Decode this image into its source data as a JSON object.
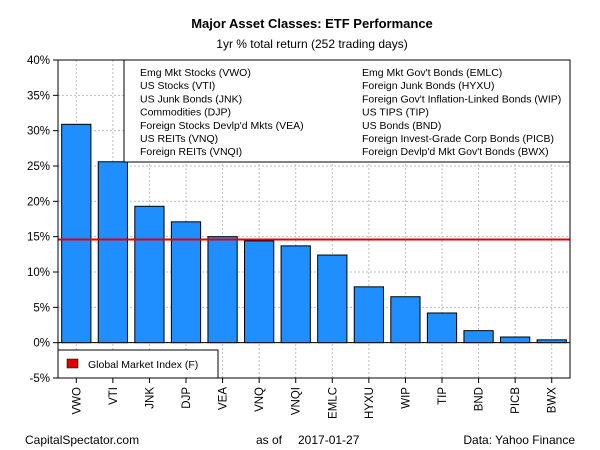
{
  "chart_data": {
    "type": "bar",
    "title": "Major Asset Classes: ETF Performance",
    "subtitle": "1yr % total return (252 trading days)",
    "categories": [
      "VWO",
      "VTI",
      "JNK",
      "DJP",
      "VEA",
      "VNQ",
      "VNQI",
      "EMLC",
      "HYXU",
      "WIP",
      "TIP",
      "BND",
      "PICB",
      "BWX"
    ],
    "values": [
      30.9,
      25.6,
      19.3,
      17.1,
      15.0,
      14.4,
      13.7,
      12.4,
      7.9,
      6.5,
      4.2,
      1.7,
      0.8,
      0.4
    ],
    "ylim": [
      -5,
      40
    ],
    "yticks": [
      -5,
      0,
      5,
      10,
      15,
      20,
      25,
      30,
      35,
      40
    ],
    "ytick_labels": [
      "-5%",
      "0%",
      "5%",
      "10%",
      "15%",
      "20%",
      "25%",
      "30%",
      "35%",
      "40%"
    ],
    "grid": true,
    "bar_color": "#1f8fff",
    "reference_line": {
      "label": "Global Market Index (F)",
      "value": 14.6,
      "color": "#e00000"
    },
    "legend_entries_left": [
      "Emg Mkt Stocks (VWO)",
      "US Stocks (VTI)",
      "US Junk Bonds (JNK)",
      "Commodities (DJP)",
      "Foreign Stocks Devlp'd Mkts (VEA)",
      "US REITs (VNQ)",
      "Foreign REITs (VNQI)"
    ],
    "legend_entries_right": [
      "Emg Mkt Gov't Bonds (EMLC)",
      "Foreign Junk Bonds (HYXU)",
      "Foreign Gov't Inflation-Linked Bonds (WIP)",
      "US TIPS (TIP)",
      "US Bonds (BND)",
      "Foreign Invest-Grade Corp Bonds (PICB)",
      "Foreign Devlp'd Mkt Gov't Bonds (BWX)"
    ]
  },
  "footer": {
    "source_left": "CapitalSpectator.com",
    "as_of_label": "as of",
    "as_of_date": "2017-01-27",
    "source_right": "Data: Yahoo Finance"
  }
}
